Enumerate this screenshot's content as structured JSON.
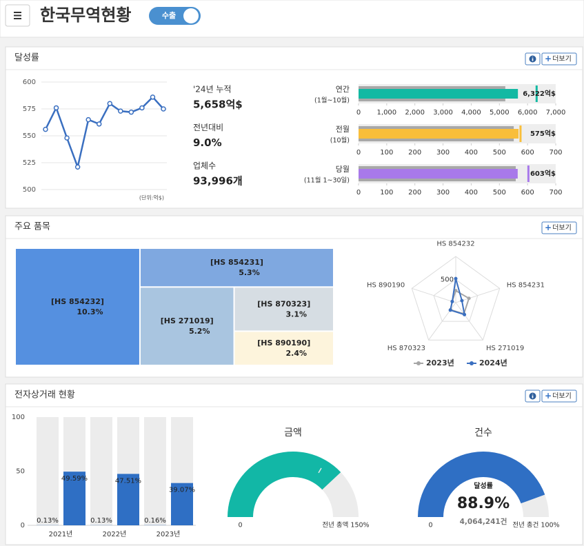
{
  "header": {
    "title": "한국무역현황",
    "toggle": "수출"
  },
  "panels": [
    {
      "title": "달성률",
      "more": "더보기"
    },
    {
      "title": "주요 품목",
      "more": "더보기"
    },
    {
      "title": "전자상거래 현황",
      "more": "더보기"
    }
  ],
  "kpis": [
    {
      "label": "'24년 누적",
      "value": "5,658억$"
    },
    {
      "label": "전년대비",
      "value": "9.0%"
    },
    {
      "label": "업체수",
      "value": "93,996개"
    }
  ],
  "chart_data": [
    {
      "type": "line",
      "note": "(단위:억$)",
      "color": "#3a6fc0",
      "values": [
        556,
        576,
        548,
        521,
        565,
        561,
        580,
        573,
        572,
        576,
        586,
        575
      ],
      "ylim": [
        500,
        600
      ],
      "yticks": [
        500,
        525,
        550,
        575,
        600
      ],
      "grid": true
    },
    {
      "type": "bullet",
      "label": "연간",
      "sublabel": "(1월~10월)",
      "previous": 5210,
      "value": 5658,
      "target": 6322,
      "target_label": "6,322억$",
      "color": "#13b9a3",
      "xlim": [
        0,
        7000
      ],
      "xticks": [
        0,
        {
          "value": 1000,
          "label": "1,000"
        },
        {
          "value": 2000,
          "label": "2,000"
        },
        {
          "value": 3000,
          "label": "3,000"
        },
        {
          "value": 4000,
          "label": "4,000"
        },
        {
          "value": 5000,
          "label": "5,000"
        },
        {
          "value": 6000,
          "label": "6,000"
        },
        {
          "value": 7000,
          "label": "7,000"
        }
      ]
    },
    {
      "type": "bullet",
      "label": "전월",
      "sublabel": "(10월)",
      "previous": 551,
      "value": 568,
      "target": 575,
      "target_label": "575억$",
      "color": "#f9be3a",
      "xlim": [
        0,
        700
      ],
      "xticks": [
        0,
        100,
        200,
        300,
        400,
        500,
        600,
        700
      ]
    },
    {
      "type": "bullet",
      "label": "당월",
      "sublabel": "(11월 1~30일)",
      "previous": 558,
      "value": 565,
      "target": 603,
      "target_label": "603억$",
      "color": "#a879ea",
      "xlim": [
        0,
        700
      ],
      "xticks": [
        0,
        100,
        200,
        300,
        400,
        500,
        600,
        700
      ]
    },
    {
      "type": "treemap",
      "categories": [
        "[HS 854232]",
        "[HS 854231]",
        "[HS 271019]",
        "[HS 870323]",
        "[HS 890190]"
      ],
      "values": [
        10.3,
        5.3,
        5.2,
        3.1,
        2.4
      ],
      "value_labels": [
        "10.3%",
        "5.3%",
        "5.2%",
        "3.1%",
        "2.4%"
      ],
      "colors": [
        "#5590e0",
        "#7fa8e0",
        "#a9c5e0",
        "#d6dde3",
        "#fdf4dc"
      ]
    },
    {
      "type": "radar",
      "categories": [
        "HS 854232",
        "HS 854231",
        "HS 271019",
        "HS 870323",
        "HS 890190"
      ],
      "ylim": [
        0,
        1000
      ],
      "yticks": [
        500
      ],
      "series": [
        {
          "name": "2023년",
          "color": "#a6a6a6",
          "values": [
            260,
            300,
            300,
            190,
            80
          ]
        },
        {
          "name": "2024년",
          "color": "#3a6fc0",
          "values": [
            520,
            140,
            320,
            200,
            80
          ]
        }
      ]
    },
    {
      "type": "bar",
      "categories": [
        "2021년",
        "2022년",
        "2023년"
      ],
      "background": "#ececec",
      "ylim": [
        0,
        100
      ],
      "yticks": [
        0,
        50,
        100
      ],
      "series": [
        {
          "color": "#2f6fc4",
          "values": [
            0.13,
            0.13,
            0.16
          ],
          "value_labels": [
            "0.13%",
            "0.13%",
            "0.16%"
          ]
        },
        {
          "color": "#2f6fc4",
          "values": [
            49.59,
            47.51,
            39.07
          ],
          "value_labels": [
            "49.59%",
            "47.51%",
            "39.07%"
          ]
        }
      ]
    },
    {
      "type": "gauge",
      "title": "금액",
      "value": 114,
      "marker": 100,
      "color": "#12b7a6",
      "ylim": [
        0,
        150
      ],
      "yticks": [
        0,
        {
          "value": 150,
          "label": "전년 총액 150%"
        }
      ]
    },
    {
      "type": "gauge",
      "title": "건수",
      "value": 88.9,
      "value_label": "88.9%",
      "caption": "달성률",
      "subcaption": "4,064,241건",
      "color": "#2f6fc4",
      "ylim": [
        0,
        100
      ],
      "yticks": [
        0,
        {
          "value": 100,
          "label": "전년 총건 100%"
        }
      ]
    }
  ]
}
